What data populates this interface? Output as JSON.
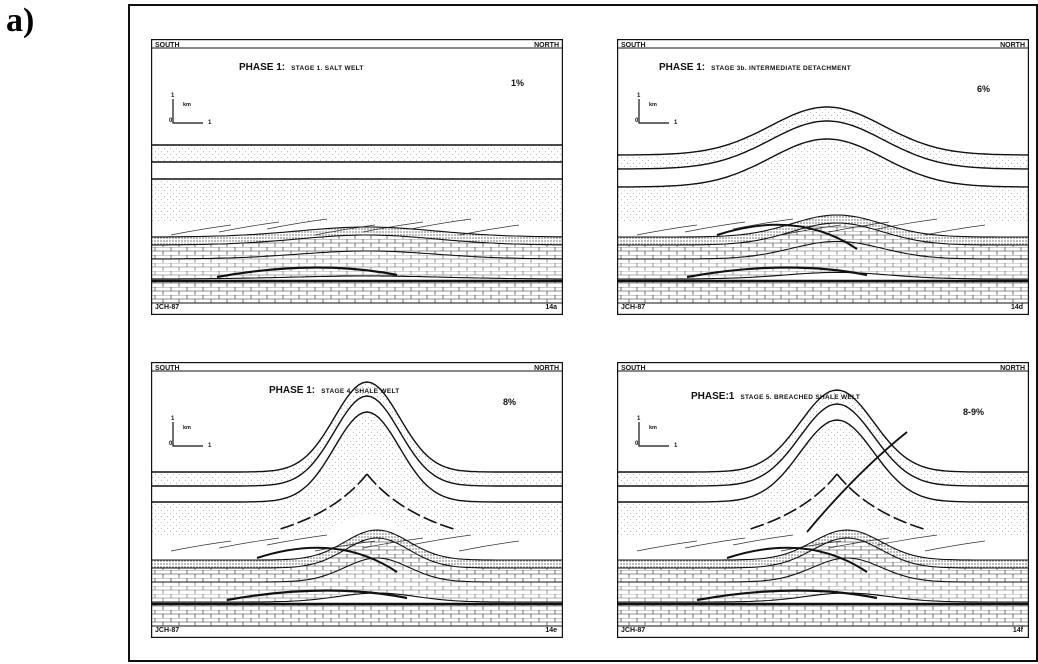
{
  "figure_label": "a)",
  "panels": [
    {
      "south": "SOUTH",
      "north": "NORTH",
      "phase": "PHASE 1:",
      "stage": "STAGE 1. SALT WELT",
      "percent": "1%",
      "scale_one": "1",
      "scale_unit": "km",
      "scale_zero": "0",
      "scale_x": "1",
      "credit": "JCH-87",
      "code": "14a"
    },
    {
      "south": "SOUTH",
      "north": "NORTH",
      "phase": "PHASE 1:",
      "stage": "STAGE 3b. INTERMEDIATE DETACHMENT",
      "percent": "6%",
      "scale_one": "1",
      "scale_unit": "km",
      "scale_zero": "0",
      "scale_x": "1",
      "credit": "JCH-87",
      "code": "14d"
    },
    {
      "south": "SOUTH",
      "north": "NORTH",
      "phase": "PHASE 1:",
      "stage": "STAGE 4. SHALE WELT",
      "percent": "8%",
      "scale_one": "1",
      "scale_unit": "km",
      "scale_zero": "0",
      "scale_x": "1",
      "credit": "JCH-87",
      "code": "14e"
    },
    {
      "south": "SOUTH",
      "north": "NORTH",
      "phase": "PHASE:1",
      "stage": "STAGE 5. BREACHED SHALE WELT",
      "percent": "8-9%",
      "scale_one": "1",
      "scale_unit": "km",
      "scale_zero": "0",
      "scale_x": "1",
      "credit": "JCH-87",
      "code": "14f"
    }
  ]
}
